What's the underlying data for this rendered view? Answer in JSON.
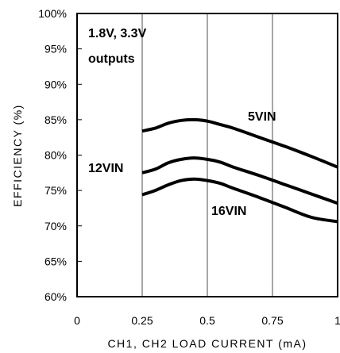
{
  "chart_data": {
    "type": "line",
    "title": "",
    "xlabel": "CH1, CH2 LOAD CURRENT (mA)",
    "ylabel": "EFFICIENCY (%)",
    "xlim": [
      0,
      1
    ],
    "ylim": [
      60,
      100
    ],
    "x_ticks": [
      "0",
      "0.25",
      "0.5",
      "0.75",
      "1"
    ],
    "y_ticks": [
      "60%",
      "65%",
      "70%",
      "75%",
      "80%",
      "85%",
      "90%",
      "95%",
      "100%"
    ],
    "grid": "vertical",
    "annotation": [
      "1.8V, 3.3V",
      "outputs"
    ],
    "series": [
      {
        "name": "5VIN",
        "color": "#000000",
        "x": [
          0.25,
          0.3,
          0.35,
          0.4,
          0.45,
          0.5,
          0.55,
          0.6,
          0.7,
          0.8,
          0.9,
          1.0
        ],
        "y": [
          83.4,
          83.8,
          84.5,
          84.9,
          85.0,
          84.8,
          84.3,
          83.8,
          82.5,
          81.2,
          79.8,
          78.3
        ]
      },
      {
        "name": "12VIN",
        "color": "#000000",
        "x": [
          0.25,
          0.3,
          0.35,
          0.4,
          0.45,
          0.5,
          0.55,
          0.6,
          0.7,
          0.8,
          0.9,
          1.0
        ],
        "y": [
          77.5,
          78.0,
          78.9,
          79.4,
          79.6,
          79.4,
          79.0,
          78.3,
          77.1,
          75.8,
          74.5,
          73.2
        ]
      },
      {
        "name": "16VIN",
        "color": "#000000",
        "x": [
          0.25,
          0.3,
          0.35,
          0.4,
          0.45,
          0.5,
          0.55,
          0.6,
          0.7,
          0.8,
          0.9,
          1.0
        ],
        "y": [
          74.4,
          75.0,
          75.8,
          76.4,
          76.6,
          76.4,
          76.0,
          75.3,
          74.0,
          72.6,
          71.2,
          70.6
        ]
      }
    ]
  }
}
